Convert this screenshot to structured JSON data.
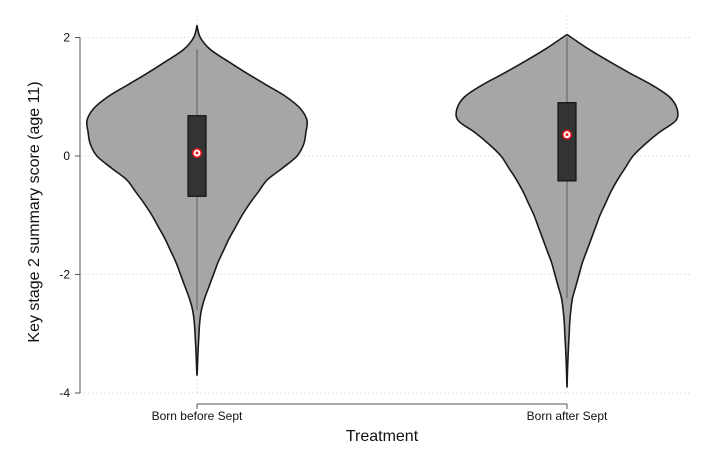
{
  "chart_data": {
    "type": "violin",
    "xlabel": "Treatment",
    "ylabel": "Key stage 2 summary score (age 11)",
    "ylim": [
      -4,
      2
    ],
    "yticks": [
      2,
      0,
      -2,
      -4
    ],
    "ytick_labels": [
      "2",
      "0",
      "-2",
      "-4"
    ],
    "grid": true,
    "colors": {
      "violin_fill": "#a6a6a6",
      "violin_outline": "#1a1a1a",
      "box_fill": "#333333",
      "median_marker": "#ffffff",
      "median_marker_ring": "#e8191f",
      "gridline": "#dcdcdc"
    },
    "groups": [
      {
        "name": "Born before Sept",
        "min": -3.7,
        "max": 2.2,
        "q1": -0.68,
        "median": 0.05,
        "q3": 0.68,
        "whisker_low": -2.6,
        "whisker_high": 1.8,
        "density": [
          [
            2.2,
            0.0
          ],
          [
            2.0,
            0.03
          ],
          [
            1.8,
            0.12
          ],
          [
            1.6,
            0.28
          ],
          [
            1.4,
            0.45
          ],
          [
            1.2,
            0.63
          ],
          [
            1.0,
            0.81
          ],
          [
            0.8,
            0.94
          ],
          [
            0.6,
            1.0
          ],
          [
            0.4,
            0.99
          ],
          [
            0.2,
            0.97
          ],
          [
            0.0,
            0.91
          ],
          [
            -0.2,
            0.78
          ],
          [
            -0.4,
            0.64
          ],
          [
            -0.6,
            0.56
          ],
          [
            -0.8,
            0.48
          ],
          [
            -1.0,
            0.41
          ],
          [
            -1.2,
            0.35
          ],
          [
            -1.4,
            0.29
          ],
          [
            -1.6,
            0.24
          ],
          [
            -1.8,
            0.19
          ],
          [
            -2.0,
            0.15
          ],
          [
            -2.2,
            0.11
          ],
          [
            -2.4,
            0.07
          ],
          [
            -2.6,
            0.04
          ],
          [
            -2.8,
            0.025
          ],
          [
            -3.0,
            0.018
          ],
          [
            -3.2,
            0.012
          ],
          [
            -3.4,
            0.007
          ],
          [
            -3.6,
            0.003
          ],
          [
            -3.7,
            0.0
          ]
        ]
      },
      {
        "name": "Born after Sept",
        "min": -3.9,
        "max": 2.05,
        "q1": -0.42,
        "median": 0.36,
        "q3": 0.9,
        "whisker_low": -2.4,
        "whisker_high": 2.0,
        "density": [
          [
            2.05,
            0.0
          ],
          [
            2.0,
            0.04
          ],
          [
            1.8,
            0.2
          ],
          [
            1.6,
            0.38
          ],
          [
            1.4,
            0.57
          ],
          [
            1.2,
            0.77
          ],
          [
            1.0,
            0.93
          ],
          [
            0.8,
            1.0
          ],
          [
            0.6,
            0.99
          ],
          [
            0.4,
            0.84
          ],
          [
            0.2,
            0.71
          ],
          [
            0.0,
            0.6
          ],
          [
            -0.2,
            0.53
          ],
          [
            -0.4,
            0.46
          ],
          [
            -0.6,
            0.4
          ],
          [
            -0.8,
            0.35
          ],
          [
            -1.0,
            0.3
          ],
          [
            -1.2,
            0.26
          ],
          [
            -1.4,
            0.22
          ],
          [
            -1.6,
            0.18
          ],
          [
            -1.8,
            0.14
          ],
          [
            -2.0,
            0.11
          ],
          [
            -2.2,
            0.08
          ],
          [
            -2.4,
            0.05
          ],
          [
            -2.6,
            0.035
          ],
          [
            -2.8,
            0.025
          ],
          [
            -3.0,
            0.02
          ],
          [
            -3.2,
            0.014
          ],
          [
            -3.4,
            0.009
          ],
          [
            -3.6,
            0.005
          ],
          [
            -3.8,
            0.002
          ],
          [
            -3.9,
            0.0
          ]
        ]
      }
    ]
  }
}
